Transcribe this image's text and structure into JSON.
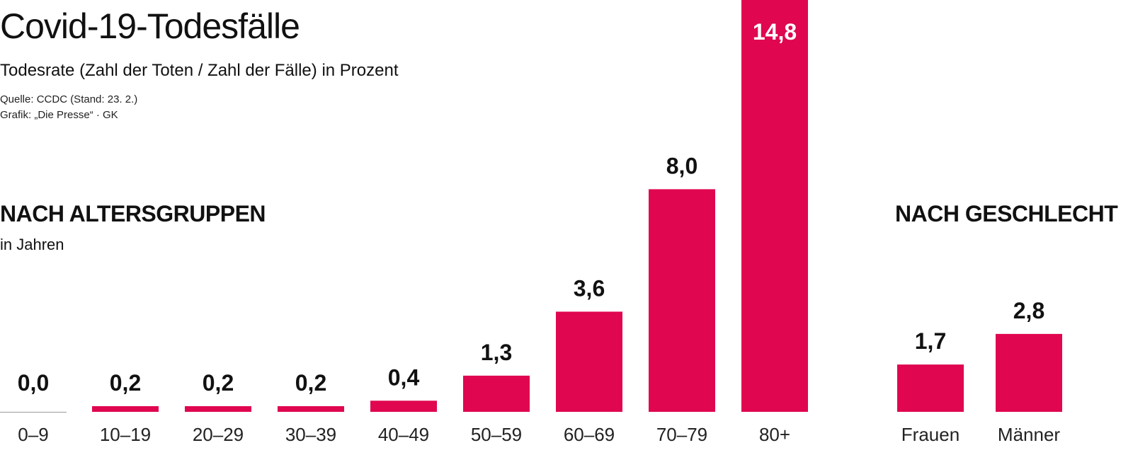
{
  "header": {
    "title": "Covid-19-Todesfälle",
    "subtitle": "Todesrate (Zahl der Toten / Zahl der Fälle) in Prozent",
    "source_line": "Quelle: CCDC (Stand: 23. 2.)",
    "credit_line": "Grafik: „Die Presse“ · GK"
  },
  "sections": {
    "age": {
      "heading": "NACH ALTERSGRUPPEN",
      "sub": "in Jahren"
    },
    "sex": {
      "heading": "NACH GESCHLECHT"
    }
  },
  "colors": {
    "bar": "#e0064f",
    "baseline": "#999999"
  },
  "chart_data": [
    {
      "type": "bar",
      "title": "NACH ALTERSGRUPPEN",
      "subtitle": "in Jahren",
      "categories": [
        "0–9",
        "10–19",
        "20–29",
        "30–39",
        "40–49",
        "50–59",
        "60–69",
        "70–79",
        "80+"
      ],
      "values": [
        0.0,
        0.2,
        0.2,
        0.2,
        0.4,
        1.3,
        3.6,
        8.0,
        14.8
      ],
      "labels": [
        "0,0",
        "0,2",
        "0,2",
        "0,2",
        "0,4",
        "1,3",
        "3,6",
        "8,0",
        "14,8"
      ],
      "ylim": [
        0,
        14.8
      ],
      "grid": false
    },
    {
      "type": "bar",
      "title": "NACH GESCHLECHT",
      "categories": [
        "Frauen",
        "Männer"
      ],
      "values": [
        1.7,
        2.8
      ],
      "labels": [
        "1,7",
        "2,8"
      ],
      "ylim": [
        0,
        14.8
      ],
      "grid": false
    }
  ]
}
